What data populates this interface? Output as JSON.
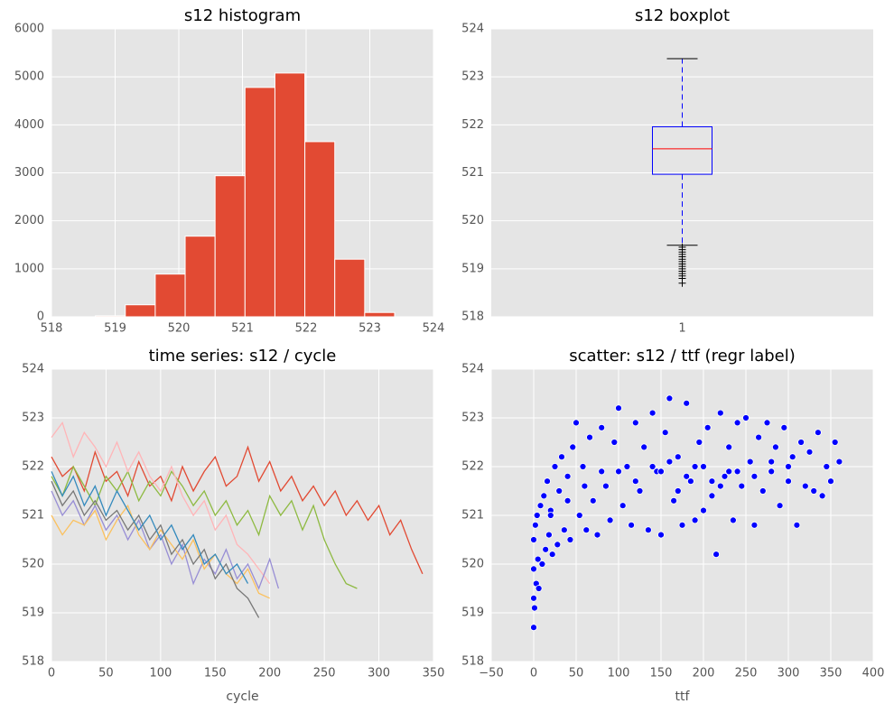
{
  "chart_data": [
    {
      "type": "histogram",
      "title": "s12 histogram",
      "color": "#E24A33",
      "bins": [
        518.69,
        519.16,
        519.63,
        520.1,
        520.57,
        521.04,
        521.51,
        521.98,
        522.45,
        522.92,
        523.39
      ],
      "counts": [
        20,
        250,
        890,
        1680,
        2940,
        4780,
        5080,
        3650,
        1200,
        90
      ],
      "xlim": [
        518,
        524
      ],
      "xticks": [
        518,
        519,
        520,
        521,
        522,
        523,
        524
      ],
      "ylim": [
        0,
        6000
      ],
      "yticks": [
        0,
        1000,
        2000,
        3000,
        4000,
        5000,
        6000
      ],
      "grid": true
    },
    {
      "type": "boxplot",
      "title": "s12 boxplot",
      "categories": [
        "1"
      ],
      "median": 521.5,
      "q1": 520.97,
      "q3": 521.96,
      "whisker_low": 519.49,
      "whisker_high": 523.38,
      "outliers": [
        519.45,
        519.4,
        519.35,
        519.3,
        519.25,
        519.2,
        519.15,
        519.1,
        519.05,
        519.0,
        518.95,
        518.9,
        518.85,
        518.8,
        518.7
      ],
      "box_color": "#0000ff",
      "median_color": "#ff0000",
      "outlier_color": "#000000",
      "ylim": [
        518,
        524
      ],
      "yticks": [
        518,
        519,
        520,
        521,
        522,
        523,
        524
      ],
      "grid": true
    },
    {
      "type": "line",
      "title": "time series: s12 / cycle",
      "xlabel": "cycle",
      "xlim": [
        0,
        350
      ],
      "xticks": [
        0,
        50,
        100,
        150,
        200,
        250,
        300,
        350
      ],
      "ylim": [
        518,
        524
      ],
      "yticks": [
        518,
        519,
        520,
        521,
        522,
        523,
        524
      ],
      "grid": true,
      "series": [
        {
          "color": "#E24A33",
          "x": [
            0,
            10,
            20,
            30,
            40,
            50,
            60,
            70,
            80,
            90,
            100,
            110,
            120,
            130,
            140,
            150,
            160,
            170,
            180,
            190,
            200,
            210,
            220,
            230,
            240,
            250,
            260,
            270,
            280,
            290,
            300,
            310,
            320,
            330,
            340
          ],
          "values": [
            522.2,
            521.8,
            522.0,
            521.5,
            522.3,
            521.7,
            521.9,
            521.4,
            522.1,
            521.6,
            521.8,
            521.3,
            522.0,
            521.5,
            521.9,
            522.2,
            521.6,
            521.8,
            522.4,
            521.7,
            522.1,
            521.5,
            521.8,
            521.3,
            521.6,
            521.2,
            521.5,
            521.0,
            521.3,
            520.9,
            521.2,
            520.6,
            520.9,
            520.3,
            519.8
          ]
        },
        {
          "color": "#8EBA42",
          "x": [
            0,
            10,
            20,
            30,
            40,
            50,
            60,
            70,
            80,
            90,
            100,
            110,
            120,
            130,
            140,
            150,
            160,
            170,
            180,
            190,
            200,
            210,
            220,
            230,
            240,
            250,
            260,
            270,
            280
          ],
          "values": [
            521.8,
            521.4,
            522.0,
            521.6,
            521.2,
            521.8,
            521.5,
            521.9,
            521.3,
            521.7,
            521.4,
            521.9,
            521.6,
            521.2,
            521.5,
            521.0,
            521.3,
            520.8,
            521.1,
            520.6,
            521.4,
            521.0,
            521.3,
            520.7,
            521.2,
            520.5,
            520.0,
            519.6,
            519.5
          ]
        },
        {
          "color": "#FFB5B8",
          "x": [
            0,
            10,
            20,
            30,
            40,
            50,
            60,
            70,
            80,
            90,
            100,
            110,
            120,
            130,
            140,
            150,
            160,
            170,
            180,
            190,
            200
          ],
          "values": [
            522.6,
            522.9,
            522.2,
            522.7,
            522.4,
            522.0,
            522.5,
            521.9,
            522.3,
            521.8,
            521.5,
            522.0,
            521.4,
            521.0,
            521.3,
            520.7,
            521.0,
            520.4,
            520.2,
            519.9,
            519.6
          ]
        },
        {
          "color": "#988ED5",
          "x": [
            0,
            10,
            20,
            30,
            40,
            50,
            60,
            70,
            80,
            90,
            100,
            110,
            120,
            130,
            140,
            150,
            160,
            170,
            180,
            190,
            200,
            208
          ],
          "values": [
            521.5,
            521.0,
            521.3,
            520.8,
            521.2,
            520.7,
            521.0,
            520.5,
            520.9,
            520.3,
            520.6,
            520.0,
            520.4,
            519.6,
            520.1,
            519.8,
            520.3,
            519.7,
            520.0,
            519.5,
            520.1,
            519.5
          ]
        },
        {
          "color": "#FBC15E",
          "x": [
            0,
            10,
            20,
            30,
            40,
            50,
            60,
            70,
            80,
            90,
            100,
            110,
            120,
            130,
            140,
            150,
            160,
            170,
            180,
            190,
            200
          ],
          "values": [
            521.0,
            520.6,
            520.9,
            520.8,
            521.1,
            520.5,
            520.9,
            521.2,
            520.6,
            520.3,
            520.7,
            520.4,
            520.1,
            520.5,
            519.9,
            520.2,
            519.8,
            519.6,
            519.9,
            519.4,
            519.3
          ]
        },
        {
          "color": "#777777",
          "x": [
            0,
            10,
            20,
            30,
            40,
            50,
            60,
            70,
            80,
            90,
            100,
            110,
            120,
            130,
            140,
            150,
            160,
            170,
            180,
            190
          ],
          "values": [
            521.7,
            521.2,
            521.5,
            521.0,
            521.3,
            520.9,
            521.1,
            520.7,
            521.0,
            520.5,
            520.8,
            520.2,
            520.5,
            520.0,
            520.3,
            519.7,
            520.0,
            519.5,
            519.3,
            518.9
          ]
        },
        {
          "color": "#348ABD",
          "x": [
            0,
            10,
            20,
            30,
            40,
            50,
            60,
            70,
            80,
            90,
            100,
            110,
            120,
            130,
            140,
            150,
            160,
            170,
            180
          ],
          "values": [
            521.9,
            521.4,
            521.8,
            521.2,
            521.6,
            521.0,
            521.5,
            521.1,
            520.7,
            521.0,
            520.5,
            520.8,
            520.3,
            520.6,
            520.0,
            520.2,
            519.8,
            520.0,
            519.6
          ]
        }
      ]
    },
    {
      "type": "scatter",
      "title": "scatter: s12 / ttf (regr label)",
      "xlabel": "ttf",
      "color": "#0000ff",
      "xlim": [
        -50,
        400
      ],
      "xticks": [
        {
          "value": -50,
          "label": "−50"
        },
        0,
        50,
        100,
        150,
        200,
        250,
        300,
        350,
        400
      ],
      "ylim": [
        518,
        524
      ],
      "yticks": [
        518,
        519,
        520,
        521,
        522,
        523,
        524
      ],
      "grid": true,
      "x": [
        0,
        0,
        0,
        0,
        1,
        2,
        3,
        4,
        5,
        6,
        8,
        10,
        12,
        14,
        16,
        18,
        20,
        22,
        25,
        28,
        30,
        33,
        36,
        40,
        43,
        46,
        50,
        54,
        58,
        62,
        66,
        70,
        75,
        80,
        85,
        90,
        95,
        100,
        105,
        110,
        115,
        120,
        125,
        130,
        135,
        140,
        145,
        150,
        155,
        160,
        165,
        170,
        175,
        180,
        185,
        190,
        195,
        200,
        205,
        210,
        215,
        220,
        225,
        230,
        235,
        240,
        245,
        250,
        255,
        260,
        265,
        270,
        275,
        280,
        285,
        290,
        295,
        300,
        305,
        310,
        315,
        320,
        325,
        330,
        335,
        340,
        345,
        350,
        355,
        360,
        20,
        40,
        60,
        80,
        100,
        120,
        140,
        160,
        180,
        200,
        220,
        240,
        260,
        280,
        300,
        150,
        170,
        190,
        210,
        230
      ],
      "values": [
        518.7,
        519.3,
        519.9,
        520.5,
        519.1,
        520.8,
        519.6,
        521.0,
        520.1,
        519.5,
        521.2,
        520.0,
        521.4,
        520.3,
        521.7,
        520.6,
        521.1,
        520.2,
        522.0,
        520.4,
        521.5,
        522.2,
        520.7,
        521.8,
        520.5,
        522.4,
        522.9,
        521.0,
        522.0,
        520.7,
        522.6,
        521.3,
        520.6,
        522.8,
        521.6,
        520.9,
        522.5,
        523.2,
        521.2,
        522.0,
        520.8,
        522.9,
        521.5,
        522.4,
        520.7,
        523.1,
        521.9,
        520.6,
        522.7,
        523.4,
        521.3,
        522.2,
        520.8,
        523.3,
        521.7,
        520.9,
        522.5,
        521.1,
        522.8,
        521.4,
        520.2,
        523.1,
        521.8,
        522.4,
        520.9,
        522.9,
        521.6,
        523.0,
        522.1,
        520.8,
        522.6,
        521.5,
        522.9,
        521.9,
        522.4,
        521.2,
        522.8,
        521.7,
        522.2,
        520.8,
        522.5,
        521.6,
        522.3,
        521.5,
        522.7,
        521.4,
        522.0,
        521.7,
        522.5,
        522.1,
        521.0,
        521.3,
        521.6,
        521.9,
        521.9,
        521.7,
        522.0,
        522.1,
        521.8,
        522.0,
        521.6,
        521.9,
        521.8,
        522.1,
        522.0,
        521.9,
        521.5,
        522.0,
        521.7,
        521.9
      ]
    }
  ]
}
